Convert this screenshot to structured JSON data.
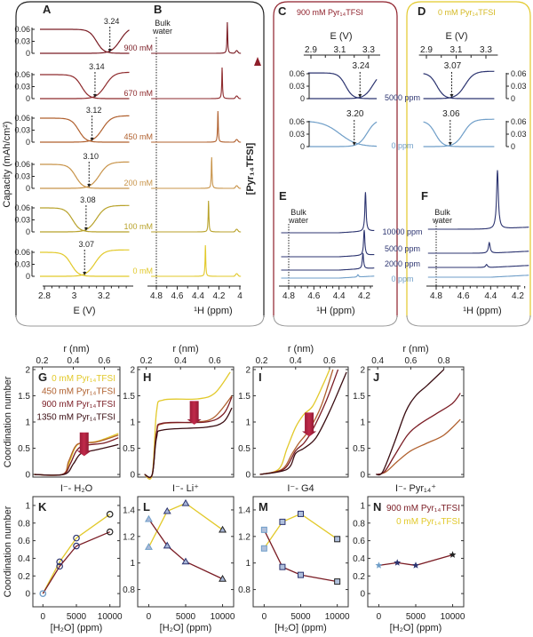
{
  "colors": {
    "c0": "#e2c92a",
    "c100": "#b8a22a",
    "c200": "#c8944a",
    "c450": "#b0602e",
    "c670": "#8e2a2c",
    "c900": "#7a1c24",
    "c1350": "#3a0d12",
    "navy": "#2c3470",
    "lightblue": "#6f9ec8",
    "boxA": "#222222",
    "boxC": "#8e1f2a",
    "boxD": "#e2c92a"
  },
  "panelA": {
    "label": "A",
    "ylabel": "Capacity (mAh/cm²)",
    "xlabel": "E (V)",
    "xticks": [
      2.8,
      3,
      3.2
    ],
    "yticks": [
      "0.06",
      "0.03",
      "0"
    ],
    "rows": [
      {
        "conc": "900 mM",
        "min": 3.24,
        "minLabel": "3.24",
        "color": "c900"
      },
      {
        "conc": "670 mM",
        "min": 3.14,
        "minLabel": "3.14",
        "color": "c670"
      },
      {
        "conc": "450 mM",
        "min": 3.12,
        "minLabel": "3.12",
        "color": "c450"
      },
      {
        "conc": "200 mM",
        "min": 3.1,
        "minLabel": "3.10",
        "color": "c200"
      },
      {
        "conc": "100 mM",
        "min": 3.08,
        "minLabel": "3.08",
        "color": "c100"
      },
      {
        "conc": "0 mM",
        "min": 3.07,
        "minLabel": "3.07",
        "color": "c0"
      }
    ]
  },
  "panelB": {
    "label": "B",
    "bulk": "Bulk",
    "water": "water",
    "xlabel": "¹H (ppm)",
    "xticks": [
      4.8,
      4.6,
      4.4,
      4.2,
      4
    ],
    "peaks": [
      4.12,
      4.17,
      4.21,
      4.27,
      4.3,
      4.33
    ],
    "arrowLabel": "[Pyr₁₄TFSI]"
  },
  "panelC": {
    "label": "C",
    "title": "900 mM Pyr₁₄TFSI",
    "xlabel": "E (V)",
    "xticks": [
      2.9,
      3.1,
      3.3
    ],
    "yticks": [
      "0.06",
      "0.03",
      "0"
    ],
    "curves": [
      {
        "ppm": "5000 ppm",
        "min": 3.24,
        "minLabel": "3.24"
      },
      {
        "ppm": "0 ppm",
        "min": 3.2,
        "minLabel": "3.20"
      }
    ]
  },
  "panelD": {
    "label": "D",
    "title": "0 mM Pyr₁₄TFSI",
    "xlabel": "E (V)",
    "xticks": [
      2.9,
      3.1,
      3.3
    ],
    "yticks": [
      "0.06",
      "0.03",
      "0"
    ],
    "curves": [
      {
        "min": 3.07,
        "minLabel": "3.07"
      },
      {
        "min": 3.06,
        "minLabel": "3.06"
      }
    ]
  },
  "panelE": {
    "label": "E",
    "bulk": "Bulk",
    "water": "water",
    "xlabel": "¹H (ppm)",
    "xticks": [
      4.8,
      4.6,
      4.4,
      4.2
    ],
    "spectra": [
      {
        "ppm": "10000 ppm",
        "peak": 4.19,
        "height": 1.0
      },
      {
        "ppm": "5000 ppm",
        "peak": 4.2,
        "height": 0.65
      },
      {
        "ppm": "2000 ppm",
        "peak": 4.21,
        "height": 0.4
      },
      {
        "ppm": "0 ppm",
        "peak": 4.25,
        "height": 0.06
      }
    ]
  },
  "panelF": {
    "label": "F",
    "bulk": "Bulk",
    "water": "water",
    "xlabel": "¹H (ppm)",
    "xticks": [
      4.8,
      4.6,
      4.4,
      4.2
    ],
    "spectra": [
      {
        "peak": 4.35,
        "height": 1.0
      },
      {
        "peak": 4.41,
        "height": 0.18
      },
      {
        "peak": 4.43,
        "height": 0.05
      },
      {
        "peak": 4.43,
        "height": 0.0
      }
    ]
  },
  "chart_data": [
    {
      "id": "G",
      "type": "line",
      "title": "I⁻- H₂O",
      "xlabel": "r (nm)",
      "ylabel": "Coordination number",
      "xticks": [
        0.2,
        0.4,
        0.6
      ],
      "yticks": [
        0,
        0.5,
        1,
        1.5,
        2
      ],
      "xlim": [
        0.14,
        0.7
      ],
      "ylim": [
        -0.05,
        2.05
      ],
      "legend": [
        "0 mM Pyr₁₄TFSI",
        "450 mM Pyr₁₄TFSI",
        "900 mM Pyr₁₄TFSI",
        "1350 mM Pyr₁₄TFSI"
      ],
      "series": [
        {
          "name": "0 mM",
          "color": "c0",
          "points": [
            [
              0.15,
              0
            ],
            [
              0.33,
              0
            ],
            [
              0.37,
              0.2
            ],
            [
              0.41,
              0.5
            ],
            [
              0.45,
              0.6
            ],
            [
              0.55,
              0.63
            ],
            [
              0.69,
              0.78
            ]
          ]
        },
        {
          "name": "450 mM",
          "color": "c450",
          "points": [
            [
              0.15,
              0
            ],
            [
              0.33,
              0
            ],
            [
              0.37,
              0.25
            ],
            [
              0.41,
              0.52
            ],
            [
              0.45,
              0.6
            ],
            [
              0.55,
              0.62
            ],
            [
              0.69,
              0.75
            ]
          ]
        },
        {
          "name": "900 mM",
          "color": "c900",
          "points": [
            [
              0.15,
              0
            ],
            [
              0.33,
              0
            ],
            [
              0.38,
              0.2
            ],
            [
              0.42,
              0.45
            ],
            [
              0.47,
              0.55
            ],
            [
              0.6,
              0.6
            ],
            [
              0.69,
              0.7
            ]
          ]
        },
        {
          "name": "1350 mM",
          "color": "c1350",
          "points": [
            [
              0.15,
              0
            ],
            [
              0.34,
              0
            ],
            [
              0.4,
              0.2
            ],
            [
              0.45,
              0.4
            ],
            [
              0.55,
              0.47
            ],
            [
              0.69,
              0.57
            ]
          ]
        }
      ]
    },
    {
      "id": "H",
      "type": "line",
      "title": "I⁻- Li⁺",
      "xlabel": "r (nm)",
      "xticks": [
        0.2,
        0.4,
        0.6
      ],
      "yticks": [
        0,
        0.5,
        1,
        1.5,
        2
      ],
      "xlim": [
        0.15,
        0.71
      ],
      "ylim": [
        -0.05,
        2.05
      ],
      "series": [
        {
          "name": "0 mM",
          "color": "c0",
          "points": [
            [
              0.19,
              0
            ],
            [
              0.235,
              0
            ],
            [
              0.26,
              1.2
            ],
            [
              0.3,
              1.42
            ],
            [
              0.5,
              1.44
            ],
            [
              0.6,
              1.55
            ],
            [
              0.69,
              1.95
            ]
          ]
        },
        {
          "name": "450 mM",
          "color": "c450",
          "points": [
            [
              0.19,
              0
            ],
            [
              0.235,
              0
            ],
            [
              0.26,
              0.8
            ],
            [
              0.3,
              0.97
            ],
            [
              0.5,
              1.0
            ],
            [
              0.6,
              1.1
            ],
            [
              0.7,
              1.5
            ]
          ]
        },
        {
          "name": "900 mM",
          "color": "c900",
          "points": [
            [
              0.19,
              0
            ],
            [
              0.235,
              0
            ],
            [
              0.26,
              0.8
            ],
            [
              0.3,
              0.98
            ],
            [
              0.55,
              1.0
            ],
            [
              0.65,
              1.15
            ],
            [
              0.7,
              1.48
            ]
          ]
        },
        {
          "name": "1350 mM",
          "color": "c1350",
          "points": [
            [
              0.19,
              0
            ],
            [
              0.235,
              0
            ],
            [
              0.26,
              0.7
            ],
            [
              0.3,
              0.85
            ],
            [
              0.55,
              0.9
            ],
            [
              0.65,
              1.0
            ],
            [
              0.7,
              1.27
            ]
          ]
        }
      ]
    },
    {
      "id": "I",
      "type": "line",
      "title": "I⁻- G4",
      "xlabel": "r (nm)",
      "xticks": [
        0.2,
        0.4,
        0.6
      ],
      "yticks": [
        0,
        0.5,
        1,
        1.5,
        2
      ],
      "xlim": [
        0.15,
        0.71
      ],
      "ylim": [
        -0.05,
        2.05
      ],
      "series": [
        {
          "name": "0 mM",
          "color": "c0",
          "points": [
            [
              0.19,
              0
            ],
            [
              0.3,
              0.1
            ],
            [
              0.35,
              0.5
            ],
            [
              0.4,
              0.9
            ],
            [
              0.45,
              1.15
            ],
            [
              0.5,
              1.3
            ],
            [
              0.56,
              1.7
            ],
            [
              0.6,
              2.0
            ]
          ]
        },
        {
          "name": "450 mM",
          "color": "c450",
          "points": [
            [
              0.19,
              0
            ],
            [
              0.32,
              0.1
            ],
            [
              0.38,
              0.4
            ],
            [
              0.42,
              0.6
            ],
            [
              0.48,
              0.85
            ],
            [
              0.55,
              1.3
            ],
            [
              0.62,
              2.0
            ]
          ]
        },
        {
          "name": "900 mM",
          "color": "c900",
          "points": [
            [
              0.19,
              0
            ],
            [
              0.33,
              0.1
            ],
            [
              0.4,
              0.45
            ],
            [
              0.45,
              0.6
            ],
            [
              0.5,
              0.85
            ],
            [
              0.58,
              1.4
            ],
            [
              0.65,
              2.0
            ]
          ]
        },
        {
          "name": "1350 mM",
          "color": "c1350",
          "points": [
            [
              0.19,
              0
            ],
            [
              0.35,
              0.1
            ],
            [
              0.4,
              0.4
            ],
            [
              0.45,
              0.5
            ],
            [
              0.52,
              0.7
            ],
            [
              0.6,
              1.2
            ],
            [
              0.7,
              1.95
            ]
          ]
        }
      ]
    },
    {
      "id": "J",
      "type": "line",
      "title": "I⁻- Pyr₁₄⁺",
      "xlabel": "r (nm)",
      "xticks": [
        0.4,
        0.6,
        0.8
      ],
      "yticks": [
        0,
        0.5,
        1,
        1.5,
        2
      ],
      "xlim": [
        0.34,
        0.92
      ],
      "ylim": [
        -0.05,
        2.05
      ],
      "series": [
        {
          "name": "450 mM",
          "color": "c450",
          "points": [
            [
              0.4,
              0
            ],
            [
              0.45,
              0.05
            ],
            [
              0.52,
              0.25
            ],
            [
              0.6,
              0.45
            ],
            [
              0.7,
              0.6
            ],
            [
              0.8,
              0.75
            ],
            [
              0.9,
              1.05
            ]
          ]
        },
        {
          "name": "900 mM",
          "color": "c900",
          "points": [
            [
              0.39,
              0
            ],
            [
              0.44,
              0.05
            ],
            [
              0.5,
              0.35
            ],
            [
              0.58,
              0.75
            ],
            [
              0.65,
              0.95
            ],
            [
              0.75,
              1.15
            ],
            [
              0.85,
              1.35
            ],
            [
              0.9,
              1.55
            ]
          ]
        },
        {
          "name": "1350 mM",
          "color": "c1350",
          "points": [
            [
              0.39,
              0
            ],
            [
              0.43,
              0.05
            ],
            [
              0.5,
              0.6
            ],
            [
              0.57,
              1.2
            ],
            [
              0.63,
              1.5
            ],
            [
              0.7,
              1.7
            ],
            [
              0.8,
              2.0
            ]
          ]
        }
      ]
    },
    {
      "id": "K",
      "type": "line",
      "xlabel": "[H₂O] (ppm)",
      "ylabel": "Coordination number",
      "marker": "circle",
      "x": [
        0,
        2500,
        5000,
        10000
      ],
      "xticks": [
        0,
        5000,
        10000
      ],
      "yticks": [
        0,
        0.2,
        0.4,
        0.6,
        0.8,
        1
      ],
      "xlim": [
        -1500,
        11500
      ],
      "ylim": [
        -0.15,
        1.1
      ],
      "series": [
        {
          "name": "0 mM Pyr₁₄TFSI",
          "color": "c0",
          "values": [
            0,
            0.36,
            0.63,
            0.9
          ]
        },
        {
          "name": "900 mM Pyr₁₄TFSI",
          "color": "c900",
          "values": [
            0,
            0.31,
            0.54,
            0.7
          ]
        }
      ]
    },
    {
      "id": "L",
      "type": "line",
      "xlabel": "[H₂O] (ppm)",
      "marker": "triangle",
      "x": [
        0,
        2500,
        5000,
        10000
      ],
      "xticks": [
        0,
        5000,
        10000
      ],
      "yticks": [
        0.8,
        1,
        1.2,
        1.4
      ],
      "xlim": [
        -1500,
        11500
      ],
      "ylim": [
        0.67,
        1.5
      ],
      "series": [
        {
          "name": "0 mM Pyr₁₄TFSI",
          "color": "c0",
          "values": [
            1.12,
            1.39,
            1.45,
            1.25
          ]
        },
        {
          "name": "900 mM Pyr₁₄TFSI",
          "color": "c900",
          "values": [
            1.33,
            1.13,
            1.01,
            0.88
          ]
        }
      ]
    },
    {
      "id": "M",
      "type": "line",
      "xlabel": "[H₂O] (ppm)",
      "marker": "square",
      "x": [
        0,
        2500,
        5000,
        10000
      ],
      "xticks": [
        0,
        5000,
        10000
      ],
      "yticks": [
        0.8,
        1,
        1.2,
        1.4
      ],
      "xlim": [
        -1500,
        11500
      ],
      "ylim": [
        0.67,
        1.5
      ],
      "series": [
        {
          "name": "0 mM Pyr₁₄TFSI",
          "color": "c0",
          "values": [
            1.11,
            1.31,
            1.37,
            1.18
          ]
        },
        {
          "name": "900 mM Pyr₁₄TFSI",
          "color": "c900",
          "values": [
            1.25,
            0.97,
            0.91,
            0.86
          ]
        }
      ]
    },
    {
      "id": "N",
      "type": "line",
      "xlabel": "[H₂O] (ppm)",
      "marker": "star",
      "x": [
        0,
        2500,
        5000,
        10000
      ],
      "xticks": [
        0,
        5000,
        10000
      ],
      "yticks": [
        0,
        0.2,
        0.4,
        0.6,
        0.8,
        1
      ],
      "xlim": [
        -1500,
        11500
      ],
      "ylim": [
        -0.15,
        1.1
      ],
      "legend": [
        "900 mM Pyr₁₄TFSI",
        "0 mM Pyr₁₄TFSI"
      ],
      "series": [
        {
          "name": "900 mM Pyr₁₄TFSI",
          "color": "c900",
          "values": [
            0.32,
            0.35,
            0.32,
            0.44
          ]
        }
      ]
    }
  ]
}
